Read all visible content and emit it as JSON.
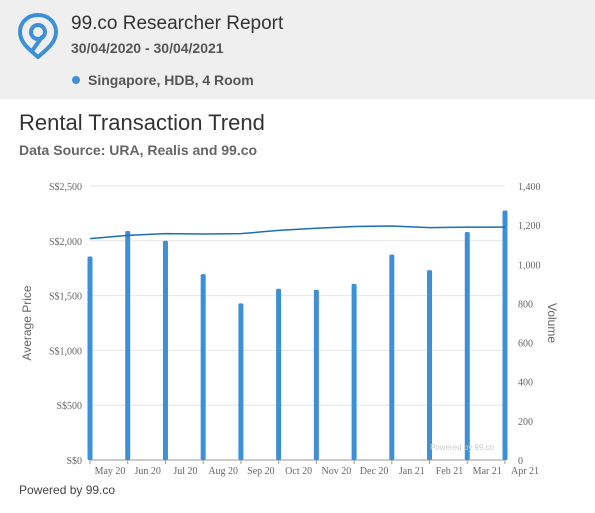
{
  "header": {
    "title": "99.co Researcher Report",
    "dates": "30/04/2020 - 30/04/2021",
    "location": "Singapore, HDB, 4 Room",
    "accent_color": "#3d8fd6"
  },
  "report": {
    "title": "Rental Transaction Trend",
    "subtitle": "Data Source: URA, Realis and 99.co"
  },
  "chart_data": {
    "type": "bar",
    "categories": [
      "May 20",
      "Jun 20",
      "Jul 20",
      "Aug 20",
      "Sep 20",
      "Oct 20",
      "Nov 20",
      "Dec 20",
      "Jan 21",
      "Feb 21",
      "Mar 21",
      "Apr 21"
    ],
    "series": [
      {
        "type": "bar",
        "axis": "right",
        "color": "#3d8fd6",
        "values": [
          1040,
          1170,
          1120,
          950,
          800,
          875,
          870,
          900,
          1050,
          970,
          1165,
          1275
        ]
      },
      {
        "type": "line",
        "axis": "left",
        "color": "#1a6fb5",
        "values": [
          2020,
          2050,
          2065,
          2062,
          2065,
          2095,
          2115,
          2130,
          2135,
          2120,
          2125,
          2125
        ]
      }
    ],
    "ylabel": "Average Price",
    "y2label": "Volume",
    "ylim": [
      0,
      2500
    ],
    "y2lim": [
      0,
      1400
    ],
    "yticks": [
      "S$0",
      "S$500",
      "S$1,000",
      "S$1,500",
      "S$2,000",
      "S$2,500"
    ],
    "y2ticks": [
      "0",
      "200",
      "400",
      "600",
      "800",
      "1,000",
      "1,200",
      "1,400"
    ],
    "grid": true,
    "credit": "Powered by 99.co"
  },
  "footer": {
    "text": "Powered by 99.co"
  }
}
